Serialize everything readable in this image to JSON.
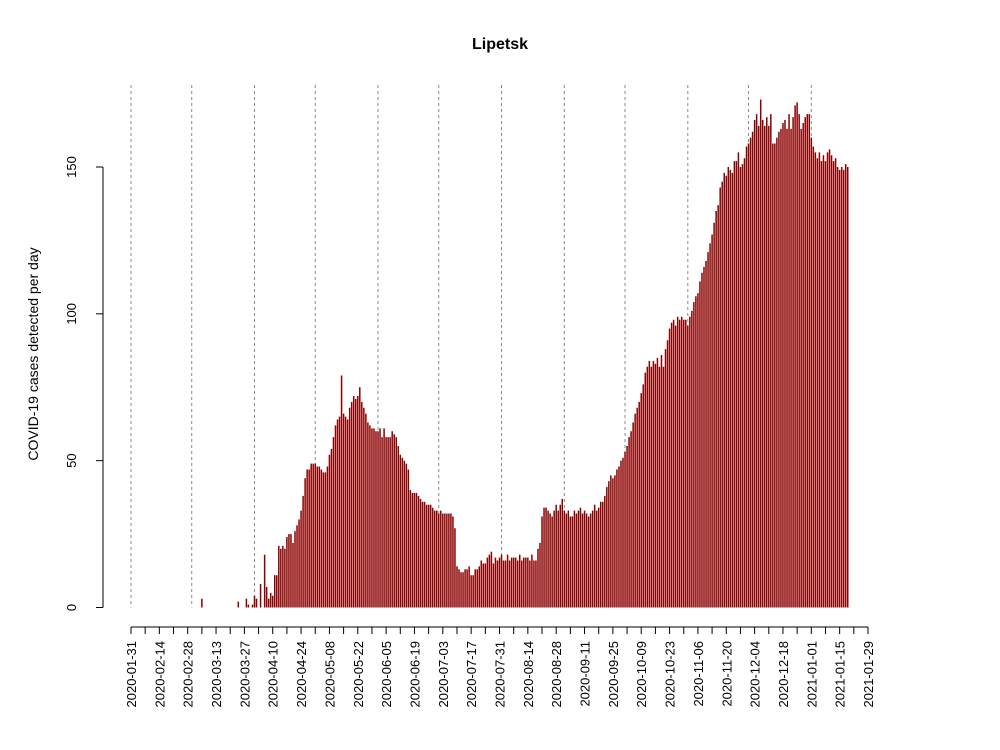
{
  "chart_data": {
    "type": "bar",
    "title": "Lipetsk",
    "xlabel": "",
    "ylabel": "COVID-19 cases detected per day",
    "ylim": [
      0,
      175
    ],
    "yticks": [
      0,
      50,
      100,
      150
    ],
    "start_date": "2020-01-31",
    "end_date": "2021-01-29",
    "date_ticks": [
      "2020-01-31",
      "2020-02-14",
      "2020-02-28",
      "2020-03-13",
      "2020-03-27",
      "2020-04-10",
      "2020-04-24",
      "2020-05-08",
      "2020-05-22",
      "2020-06-05",
      "2020-06-19",
      "2020-07-03",
      "2020-07-17",
      "2020-07-31",
      "2020-08-14",
      "2020-08-28",
      "2020-09-11",
      "2020-09-25",
      "2020-10-09",
      "2020-10-23",
      "2020-11-06",
      "2020-11-20",
      "2020-12-04",
      "2020-12-18",
      "2021-01-01",
      "2021-01-15",
      "2021-01-29"
    ],
    "vlines": [
      "2020-01-31",
      "2020-03-01",
      "2020-04-01",
      "2020-05-01",
      "2020-06-01",
      "2020-07-01",
      "2020-08-01",
      "2020-09-01",
      "2020-10-01",
      "2020-11-01",
      "2020-12-01",
      "2021-01-01"
    ],
    "bar_color": "#8b0000",
    "grid": false,
    "series": [
      {
        "values": [
          0,
          0,
          0,
          0,
          0,
          0,
          0,
          0,
          0,
          0,
          0,
          0,
          0,
          0,
          0,
          0,
          0,
          0,
          0,
          0,
          0,
          0,
          0,
          0,
          0,
          0,
          0,
          0,
          0,
          0,
          0,
          0,
          0,
          0,
          0,
          3,
          0,
          0,
          0,
          0,
          0,
          0,
          0,
          0,
          0,
          0,
          0,
          0,
          0,
          0,
          0,
          0,
          0,
          2,
          0,
          0,
          0,
          3,
          1,
          0,
          1,
          4,
          3,
          0,
          8,
          0,
          18,
          7,
          3,
          5,
          4,
          11,
          11,
          21,
          20,
          21,
          20,
          24,
          25,
          25,
          22,
          26,
          28,
          30,
          33,
          38,
          44,
          47,
          47,
          49,
          49,
          49,
          48,
          48,
          47,
          46,
          46,
          48,
          52,
          54,
          58,
          62,
          64,
          65,
          79,
          66,
          65,
          64,
          68,
          70,
          72,
          71,
          72,
          75,
          70,
          68,
          66,
          63,
          62,
          61,
          61,
          60,
          60,
          61,
          58,
          61,
          58,
          58,
          58,
          60,
          59,
          58,
          55,
          52,
          51,
          50,
          49,
          47,
          40,
          39,
          39,
          39,
          38,
          37,
          36,
          36,
          35,
          35,
          35,
          34,
          33,
          33,
          32,
          33,
          32,
          32,
          32,
          32,
          32,
          31,
          27,
          14,
          13,
          12,
          12,
          13,
          13,
          14,
          11,
          11,
          13,
          13,
          14,
          16,
          15,
          15,
          17,
          18,
          19,
          15,
          17,
          16,
          17,
          18,
          16,
          16,
          18,
          16,
          17,
          17,
          17,
          16,
          18,
          16,
          17,
          17,
          17,
          16,
          18,
          16,
          16,
          20,
          22,
          31,
          34,
          34,
          33,
          32,
          31,
          33,
          35,
          33,
          35,
          37,
          33,
          32,
          33,
          31,
          31,
          33,
          32,
          33,
          34,
          32,
          33,
          32,
          31,
          32,
          33,
          35,
          33,
          34,
          36,
          36,
          38,
          41,
          43,
          45,
          44,
          45,
          47,
          48,
          50,
          51,
          53,
          55,
          58,
          60,
          63,
          66,
          68,
          70,
          73,
          76,
          80,
          82,
          84,
          82,
          84,
          83,
          85,
          82,
          86,
          82,
          88,
          91,
          95,
          97,
          98,
          96,
          99,
          98,
          99,
          98,
          98,
          96,
          99,
          101,
          104,
          106,
          107,
          111,
          114,
          116,
          118,
          121,
          124,
          127,
          131,
          135,
          137,
          143,
          145,
          148,
          147,
          150,
          149,
          148,
          152,
          152,
          155,
          150,
          151,
          153,
          157,
          158,
          160,
          162,
          166,
          168,
          164,
          173,
          166,
          164,
          167,
          164,
          168,
          158,
          158,
          160,
          162,
          163,
          165,
          166,
          163,
          168,
          163,
          167,
          171,
          172,
          168,
          163,
          165,
          167,
          168,
          168,
          160,
          157,
          155,
          153,
          155,
          152,
          154,
          152,
          155,
          156,
          154,
          152,
          153,
          150,
          149,
          150,
          149,
          151,
          150
        ]
      }
    ]
  }
}
